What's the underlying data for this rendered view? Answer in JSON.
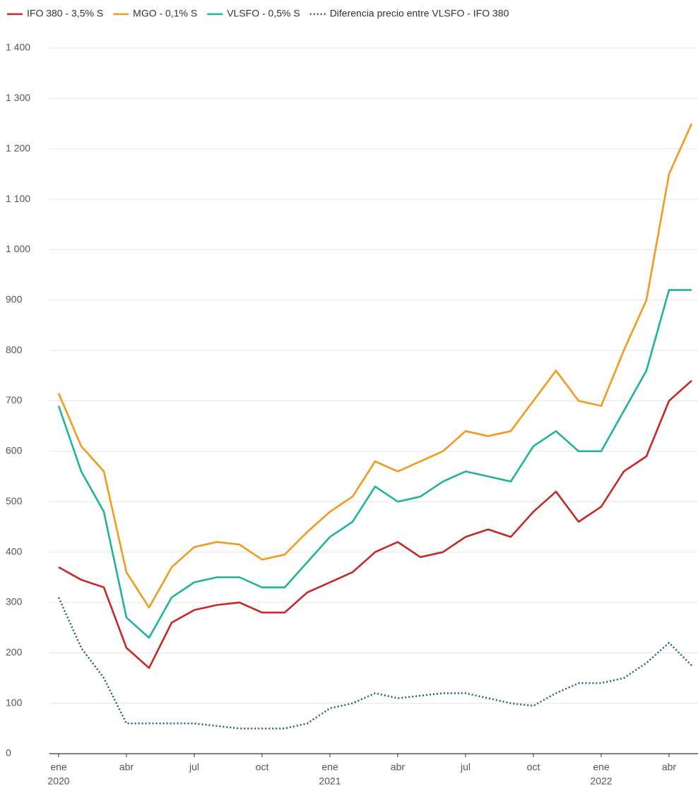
{
  "chart_data": {
    "type": "line",
    "x": [
      "2020-01",
      "2020-02",
      "2020-03",
      "2020-04",
      "2020-05",
      "2020-06",
      "2020-07",
      "2020-08",
      "2020-09",
      "2020-10",
      "2020-11",
      "2020-12",
      "2021-01",
      "2021-02",
      "2021-03",
      "2021-04",
      "2021-05",
      "2021-06",
      "2021-07",
      "2021-08",
      "2021-09",
      "2021-10",
      "2021-11",
      "2021-12",
      "2022-01",
      "2022-02",
      "2022-03",
      "2022-04",
      "2022-05"
    ],
    "xticks": [
      {
        "value": "2020-01",
        "label": "ene",
        "year": "2020"
      },
      {
        "value": "2020-04",
        "label": "abr"
      },
      {
        "value": "2020-07",
        "label": "jul"
      },
      {
        "value": "2020-10",
        "label": "oct"
      },
      {
        "value": "2021-01",
        "label": "ene",
        "year": "2021"
      },
      {
        "value": "2021-04",
        "label": "abr"
      },
      {
        "value": "2021-07",
        "label": "jul"
      },
      {
        "value": "2021-10",
        "label": "oct"
      },
      {
        "value": "2022-01",
        "label": "ene",
        "year": "2022"
      },
      {
        "value": "2022-04",
        "label": "abr"
      }
    ],
    "ylim": [
      0,
      1400
    ],
    "yticks": [
      0,
      100,
      200,
      300,
      400,
      500,
      600,
      700,
      800,
      900,
      {
        "value": 1000,
        "label": "1 000"
      },
      {
        "value": 1100,
        "label": "1 100"
      },
      {
        "value": 1200,
        "label": "1 200"
      },
      {
        "value": 1300,
        "label": "1 300"
      },
      {
        "value": 1400,
        "label": "1 400"
      }
    ],
    "grid": true,
    "legend": "top",
    "series": [
      {
        "name": "IFO 380 - 3,5% S",
        "color": "#c62828",
        "values": [
          370,
          345,
          330,
          210,
          170,
          260,
          285,
          295,
          300,
          280,
          280,
          320,
          340,
          360,
          400,
          420,
          390,
          400,
          430,
          445,
          430,
          480,
          520,
          460,
          490,
          560,
          590,
          700,
          740
        ]
      },
      {
        "name": "MGO - 0,1% S",
        "color": "#f39a1e",
        "values": [
          715,
          610,
          560,
          360,
          290,
          370,
          410,
          420,
          415,
          385,
          395,
          440,
          480,
          510,
          580,
          560,
          580,
          600,
          640,
          630,
          640,
          700,
          760,
          700,
          690,
          800,
          900,
          1150,
          1250
        ]
      },
      {
        "name": "VLSFO - 0,5% S",
        "color": "#1fb39b",
        "values": [
          690,
          560,
          480,
          270,
          230,
          310,
          340,
          350,
          350,
          330,
          330,
          380,
          430,
          460,
          530,
          500,
          510,
          540,
          560,
          550,
          540,
          610,
          640,
          600,
          600,
          680,
          760,
          920,
          920
        ]
      },
      {
        "name": "Diferencia precio entre VLSFO - IFO 380",
        "color": "#1b5e7e",
        "dash": true,
        "values": [
          310,
          210,
          150,
          60,
          60,
          60,
          60,
          55,
          50,
          50,
          50,
          60,
          90,
          100,
          120,
          110,
          115,
          120,
          120,
          110,
          100,
          95,
          120,
          140,
          140,
          150,
          180,
          220,
          175
        ]
      }
    ]
  }
}
